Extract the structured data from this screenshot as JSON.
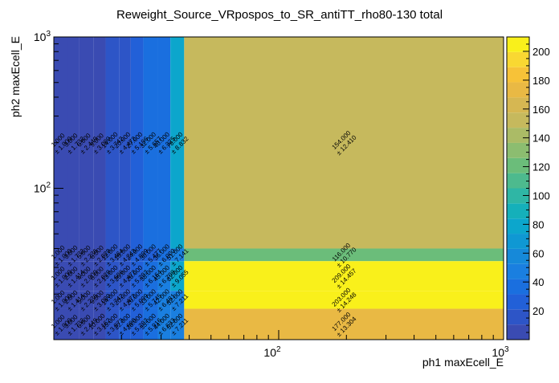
{
  "chart_data": {
    "type": "heatmap",
    "title": "Reweight_Source_VRpospos_to_SR_antiTT_rho80-130 total",
    "xlabel": "ph1 maxEcell_E",
    "ylabel": "ph2 maxEcell_E",
    "x_scale": "log",
    "y_scale": "log",
    "xlim": [
      10,
      1000
    ],
    "ylim": [
      10,
      1000
    ],
    "x_tick_labels": [
      "10^2",
      "10^3"
    ],
    "y_tick_labels": [
      "10^2",
      "10^3"
    ],
    "colorbar": {
      "min": 0,
      "max": 210,
      "ticks": [
        20,
        40,
        60,
        80,
        100,
        120,
        140,
        160,
        180,
        200
      ]
    },
    "x_edges": [
      10,
      11.5,
      13,
      15,
      17,
      19.5,
      22,
      25,
      29,
      33,
      38,
      1000
    ],
    "y_edges": [
      10,
      16,
      21,
      33,
      40,
      1000
    ],
    "cells": [
      {
        "xi": 0,
        "yi": 4,
        "value": 1.0,
        "label": "1.000",
        "error": "± 1.000"
      },
      {
        "xi": 1,
        "yi": 4,
        "value": 3.0,
        "label": "3.000",
        "error": "± 1.732"
      },
      {
        "xi": 2,
        "yi": 4,
        "value": 6.0,
        "label": "6.000",
        "error": "± 2.449"
      },
      {
        "xi": 3,
        "yi": 4,
        "value": 9.0,
        "label": "9.000",
        "error": "± 3.000"
      },
      {
        "xi": 4,
        "yi": 4,
        "value": 14.0,
        "label": "14.000",
        "error": "± 3.742"
      },
      {
        "xi": 5,
        "yi": 4,
        "value": 20.0,
        "label": "20.000",
        "error": "± 4.472"
      },
      {
        "xi": 6,
        "yi": 4,
        "value": 27.0,
        "label": "27.000",
        "error": "± 5.196"
      },
      {
        "xi": 7,
        "yi": 4,
        "value": 32.0,
        "label": "32.000",
        "error": "± 5.657"
      },
      {
        "xi": 8,
        "yi": 4,
        "value": 40.0,
        "label": "40.000",
        "error": "± 6.325"
      },
      {
        "xi": 9,
        "yi": 4,
        "value": 78.0,
        "label": "78.000",
        "error": "± 8.832"
      },
      {
        "xi": 10,
        "yi": 4,
        "value": 154.0,
        "label": "154.000",
        "error": "± 12.410"
      },
      {
        "xi": 0,
        "yi": 3,
        "value": 1.0,
        "label": "1.000",
        "error": "± 1.000"
      },
      {
        "xi": 1,
        "yi": 3,
        "value": 3.0,
        "label": "3.000",
        "error": "± 1.732"
      },
      {
        "xi": 2,
        "yi": 3,
        "value": 5.0,
        "label": "5.000",
        "error": "± 2.236"
      },
      {
        "xi": 3,
        "yi": 3,
        "value": 8.0,
        "label": "8.000",
        "error": "± 2.828"
      },
      {
        "xi": 4,
        "yi": 3,
        "value": 12.0,
        "label": "12.000",
        "error": "± 3.464"
      },
      {
        "xi": 5,
        "yi": 3,
        "value": 18.0,
        "label": "18.000",
        "error": "± 4.243"
      },
      {
        "xi": 6,
        "yi": 3,
        "value": 24.0,
        "label": "24.000",
        "error": "± 4.899"
      },
      {
        "xi": 7,
        "yi": 3,
        "value": 30.0,
        "label": "30.000",
        "error": "± 5.477"
      },
      {
        "xi": 8,
        "yi": 3,
        "value": 36.0,
        "label": "36.000",
        "error": "± 6.000"
      },
      {
        "xi": 9,
        "yi": 3,
        "value": 51.0,
        "label": "51.000",
        "error": "± 7.141"
      },
      {
        "xi": 10,
        "yi": 3,
        "value": 116.0,
        "label": "116.000",
        "error": "± 10.770"
      },
      {
        "xi": 0,
        "yi": 2,
        "value": 1.0,
        "label": "1.000",
        "error": "± 1.000"
      },
      {
        "xi": 1,
        "yi": 2,
        "value": 2.0,
        "label": "2.000",
        "error": "± 1.414"
      },
      {
        "xi": 2,
        "yi": 2,
        "value": 4.0,
        "label": "4.000",
        "error": "± 2.000"
      },
      {
        "xi": 3,
        "yi": 2,
        "value": 8.0,
        "label": "8.000",
        "error": "± 2.828"
      },
      {
        "xi": 4,
        "yi": 2,
        "value": 13.0,
        "label": "13.000",
        "error": "± 3.606"
      },
      {
        "xi": 5,
        "yi": 2,
        "value": 20.0,
        "label": "20.000",
        "error": "± 4.472"
      },
      {
        "xi": 6,
        "yi": 2,
        "value": 28.0,
        "label": "28.000",
        "error": "± 5.292"
      },
      {
        "xi": 7,
        "yi": 2,
        "value": 38.0,
        "label": "38.000",
        "error": "± 6.164"
      },
      {
        "xi": 8,
        "yi": 2,
        "value": 45.0,
        "label": "45.000",
        "error": "± 6.708"
      },
      {
        "xi": 9,
        "yi": 2,
        "value": 82.0,
        "label": "82.000",
        "error": "± 9.055"
      },
      {
        "xi": 10,
        "yi": 2,
        "value": 209.0,
        "label": "209.000",
        "error": "± 14.457"
      },
      {
        "xi": 0,
        "yi": 1,
        "value": 1.0,
        "label": "1.000",
        "error": "± 1.000"
      },
      {
        "xi": 1,
        "yi": 1,
        "value": 2.0,
        "label": "2.000",
        "error": "± 1.414"
      },
      {
        "xi": 2,
        "yi": 1,
        "value": 5.0,
        "label": "5.000",
        "error": "± 2.236"
      },
      {
        "xi": 3,
        "yi": 1,
        "value": 9.0,
        "label": "9.000",
        "error": "± 3.000"
      },
      {
        "xi": 4,
        "yi": 1,
        "value": 14.0,
        "label": "14.000",
        "error": "± 3.742"
      },
      {
        "xi": 5,
        "yi": 1,
        "value": 20.0,
        "label": "20.000",
        "error": "± 4.472"
      },
      {
        "xi": 6,
        "yi": 1,
        "value": 26.0,
        "label": "26.000",
        "error": "± 5.099"
      },
      {
        "xi": 7,
        "yi": 1,
        "value": 33.0,
        "label": "33.000",
        "error": "± 5.745"
      },
      {
        "xi": 8,
        "yi": 1,
        "value": 42.0,
        "label": "42.000",
        "error": "± 6.481"
      },
      {
        "xi": 9,
        "yi": 1,
        "value": 52.0,
        "label": "52.000",
        "error": "± 7.211"
      },
      {
        "xi": 10,
        "yi": 1,
        "value": 203.0,
        "label": "203.000",
        "error": "± 14.248"
      },
      {
        "xi": 0,
        "yi": 0,
        "value": 1.0,
        "label": "1.000",
        "error": "± 1.000"
      },
      {
        "xi": 1,
        "yi": 0,
        "value": 3.0,
        "label": "3.000",
        "error": "± 1.732"
      },
      {
        "xi": 2,
        "yi": 0,
        "value": 6.0,
        "label": "6.000",
        "error": "± 2.449"
      },
      {
        "xi": 3,
        "yi": 0,
        "value": 10.0,
        "label": "10.000",
        "error": "± 3.162"
      },
      {
        "xi": 4,
        "yi": 0,
        "value": 15.0,
        "label": "15.000",
        "error": "± 3.873"
      },
      {
        "xi": 5,
        "yi": 0,
        "value": 22.0,
        "label": "22.000",
        "error": "± 4.690"
      },
      {
        "xi": 6,
        "yi": 0,
        "value": 28.0,
        "label": "28.000",
        "error": "± 5.292"
      },
      {
        "xi": 7,
        "yi": 0,
        "value": 35.0,
        "label": "35.000",
        "error": "± 5.916"
      },
      {
        "xi": 8,
        "yi": 0,
        "value": 44.0,
        "label": "44.000",
        "error": "± 6.633"
      },
      {
        "xi": 9,
        "yi": 0,
        "value": 52.0,
        "label": "52.000",
        "error": "± 7.211"
      },
      {
        "xi": 10,
        "yi": 0,
        "value": 177.0,
        "label": "177.000",
        "error": "± 13.304"
      }
    ],
    "grid": false,
    "legend": "colorbar-right"
  }
}
